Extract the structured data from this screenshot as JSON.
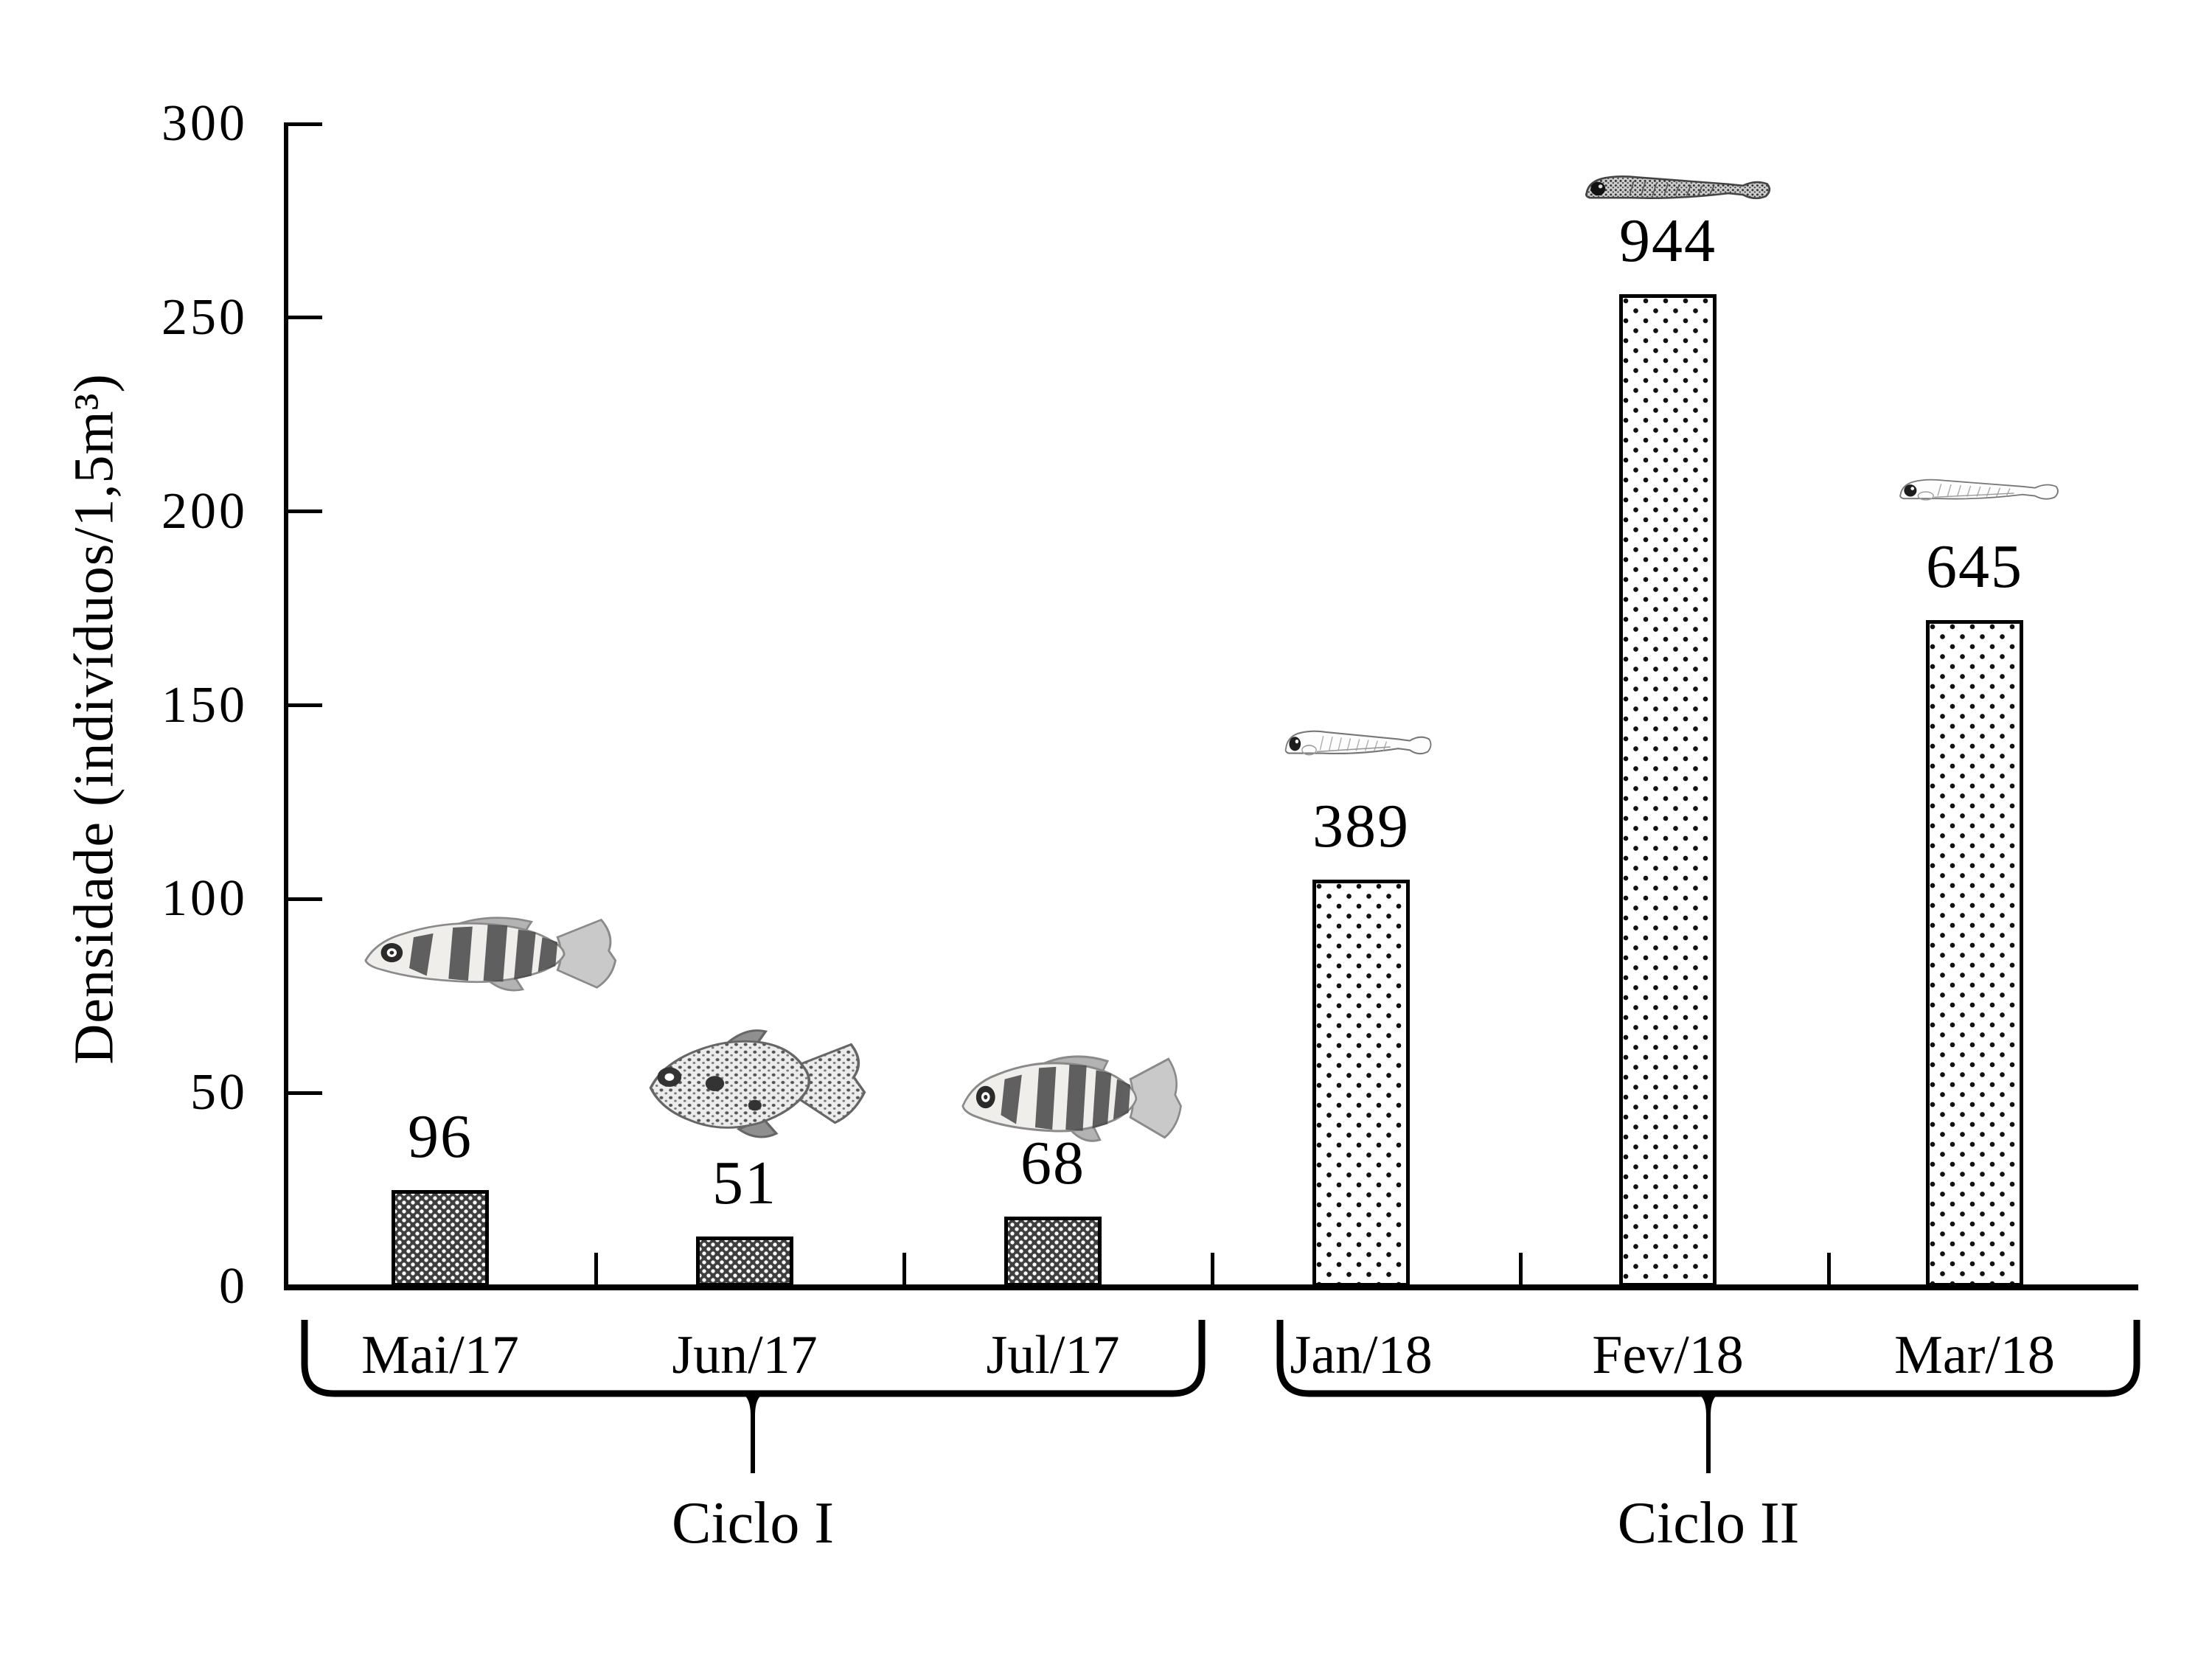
{
  "figure": {
    "background_color": "#ffffff",
    "axis_color": "#000000",
    "text_color": "#000000"
  },
  "chart_data": {
    "type": "bar",
    "title": "",
    "xlabel": "",
    "ylabel": "Densidade (indivíduos/1,5m³)",
    "ylim": [
      0,
      300
    ],
    "yticks": [
      0,
      50,
      100,
      150,
      200,
      250,
      300
    ],
    "grid": false,
    "legend": null,
    "categories": [
      "Mai/17",
      "Jun/17",
      "Jul/17",
      "Jan/18",
      "Fev/18",
      "Mar/18"
    ],
    "series": [
      {
        "name": "Densidade",
        "data_labels": [
          "96",
          "51",
          "68",
          "389",
          "944",
          "645"
        ],
        "bar_heights_axis_units": [
          25,
          13,
          18,
          105,
          256,
          172
        ]
      }
    ],
    "groups": [
      {
        "label": "Ciclo I",
        "from_category": "Mai/17",
        "to_category": "Jul/17"
      },
      {
        "label": "Ciclo II",
        "from_category": "Jan/18",
        "to_category": "Mar/18"
      }
    ],
    "bar_styles": [
      {
        "applies_to": "Ciclo I",
        "pattern": "dark with small white dots",
        "base_color": "#3f3f3f",
        "dot_color": "#ffffff"
      },
      {
        "applies_to": "Ciclo II",
        "pattern": "white with small black dots",
        "base_color": "#ffffff",
        "dot_color": "#111111"
      }
    ],
    "decorations": [
      {
        "icon": "striped-juvenile-fish-icon",
        "over_category": "Mai/17"
      },
      {
        "icon": "spotted-juvenile-fish-icon",
        "over_category": "Jun/17"
      },
      {
        "icon": "striped-juvenile-fish-icon",
        "over_category": "Jul/17"
      },
      {
        "icon": "fish-larva-icon",
        "over_category": "Jan/18"
      },
      {
        "icon": "fish-larva-dark-icon",
        "over_category": "Fev/18"
      },
      {
        "icon": "fish-larva-icon",
        "over_category": "Mar/18"
      }
    ]
  }
}
